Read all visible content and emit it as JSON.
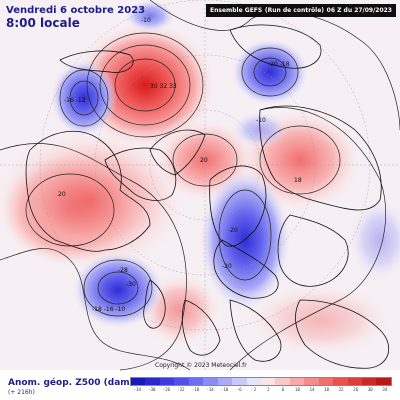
{
  "header": {
    "date": "Vendredi 6 octobre 2023",
    "time": "8:00 locale",
    "model_title": "Ensemble GEFS",
    "model_run": "(Run de contrôle)",
    "run_time": "06 Z du 27/09/2023"
  },
  "footer": {
    "title": "Anom. géop. Z500 (dam)",
    "subtitle": "(+ 216h)",
    "copyright": "Copyright © 2023 Meteociel.fr"
  },
  "legend": {
    "ticks": [
      "-34",
      "-30",
      "-26",
      "-22",
      "-18",
      "-14",
      "-10",
      "-6",
      "-2",
      "2",
      "6",
      "10",
      "14",
      "18",
      "22",
      "26",
      "30",
      "34"
    ],
    "colors": [
      "#1a1ab8",
      "#2a2acc",
      "#3d3dde",
      "#5252ea",
      "#6e6ef0",
      "#8c8cf4",
      "#aaaaf7",
      "#c8c8fa",
      "#e4e4fd",
      "#fde4e4",
      "#fac8c8",
      "#f7aaaa",
      "#f48c8c",
      "#f06e6e",
      "#ea5252",
      "#de3d3d",
      "#cc2a2a",
      "#b81a1a"
    ]
  },
  "anomaly_labels": [
    {
      "name": "label-alaska-low",
      "text": "-16 -12"
    },
    {
      "name": "label-greenland-high",
      "text": "30 32 33"
    },
    {
      "name": "label-top-low",
      "text": "-10"
    },
    {
      "name": "label-siberia-low",
      "text": "-20 -18"
    },
    {
      "name": "label-arctic-high",
      "text": "20"
    },
    {
      "name": "label-minus10",
      "text": "-10"
    },
    {
      "name": "label-asia-high",
      "text": "18"
    },
    {
      "name": "label-canada-high",
      "text": "20"
    },
    {
      "name": "label-europe-low-1",
      "text": "-20"
    },
    {
      "name": "label-europe-low-2",
      "text": "-20"
    },
    {
      "name": "label-atlantic-low",
      "text": "-28"
    },
    {
      "name": "label-atlantic-low-2",
      "text": "-30"
    },
    {
      "name": "label-atlantic-low-3",
      "text": "-18 -16 -10"
    }
  ]
}
